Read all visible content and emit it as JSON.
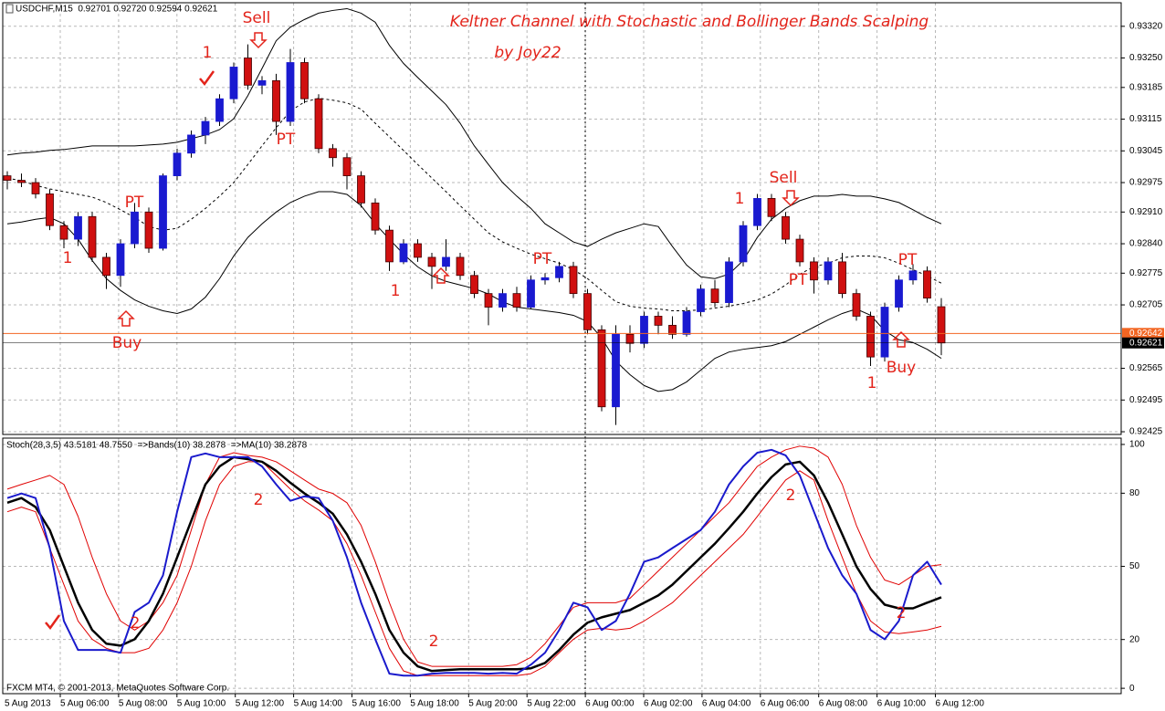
{
  "chart_data": [
    {
      "type": "candlestick",
      "header": "USDCHF,M15  0.92701 0.92720 0.92594 0.92621",
      "title": "Keltner Channel with Stochastic and Bollinger Bands Scalping",
      "subtitle": "by Joy22",
      "up_color": "#1a1ad0",
      "down_color": "#d01010",
      "open": [
        0.9299,
        0.9298,
        0.92975,
        0.9295,
        0.9288,
        0.9285,
        0.929,
        0.9281,
        0.9277,
        0.9284,
        0.9291,
        0.9283,
        0.9299,
        0.9304,
        0.9308,
        0.9311,
        0.9316,
        0.9325,
        0.9319,
        0.932,
        0.9311,
        0.9324,
        0.9316,
        0.9305,
        0.9303,
        0.9299,
        0.9293,
        0.9287,
        0.928,
        0.9284,
        0.9281,
        0.9279,
        0.9281,
        0.9277,
        0.9273,
        0.927,
        0.9273,
        0.927,
        0.9276,
        0.92765,
        0.9279,
        0.9273,
        0.9265,
        0.9248,
        0.9264,
        0.9262,
        0.9268,
        0.9266,
        0.9264,
        0.9269,
        0.9274,
        0.9271,
        0.928,
        0.9288,
        0.9294,
        0.929,
        0.9285,
        0.928,
        0.9276,
        0.928,
        0.9273,
        0.9268,
        0.9259,
        0.927,
        0.9276,
        0.9278,
        0.92701
      ],
      "high": [
        0.93,
        0.92995,
        0.92985,
        0.9296,
        0.9289,
        0.9291,
        0.9291,
        0.9282,
        0.9285,
        0.9293,
        0.9292,
        0.92995,
        0.9305,
        0.9309,
        0.9312,
        0.9317,
        0.9324,
        0.9328,
        0.9321,
        0.93215,
        0.9327,
        0.9325,
        0.9317,
        0.9306,
        0.9304,
        0.93,
        0.9294,
        0.9288,
        0.9285,
        0.9285,
        0.9282,
        0.9285,
        0.9282,
        0.9278,
        0.9274,
        0.9274,
        0.92745,
        0.9277,
        0.92775,
        0.928,
        0.928,
        0.9274,
        0.9266,
        0.9266,
        0.9266,
        0.9269,
        0.9269,
        0.9268,
        0.927,
        0.9275,
        0.9276,
        0.9281,
        0.9289,
        0.9295,
        0.9295,
        0.9291,
        0.9286,
        0.9281,
        0.9281,
        0.9282,
        0.9274,
        0.9269,
        0.9271,
        0.9277,
        0.92795,
        0.9279,
        0.9272
      ],
      "low": [
        0.9296,
        0.92965,
        0.9294,
        0.9287,
        0.9283,
        0.92835,
        0.928,
        0.9274,
        0.92745,
        0.9283,
        0.9282,
        0.92825,
        0.9298,
        0.9303,
        0.9306,
        0.931,
        0.9315,
        0.9318,
        0.9317,
        0.9308,
        0.931,
        0.9315,
        0.9304,
        0.9301,
        0.9296,
        0.9292,
        0.9286,
        0.9278,
        0.92795,
        0.928,
        0.9274,
        0.9278,
        0.9276,
        0.9272,
        0.9266,
        0.9269,
        0.9269,
        0.92695,
        0.9275,
        0.92755,
        0.9272,
        0.9264,
        0.9247,
        0.9244,
        0.926,
        0.9261,
        0.9264,
        0.9263,
        0.92635,
        0.9268,
        0.927,
        0.927,
        0.9279,
        0.9287,
        0.9289,
        0.9284,
        0.9279,
        0.9273,
        0.9275,
        0.9272,
        0.9267,
        0.9257,
        0.9258,
        0.9269,
        0.9275,
        0.9271,
        0.92594
      ],
      "close": [
        0.9298,
        0.92975,
        0.9295,
        0.9288,
        0.9285,
        0.929,
        0.9281,
        0.9277,
        0.9284,
        0.9291,
        0.9283,
        0.9299,
        0.9304,
        0.9308,
        0.9311,
        0.9316,
        0.9323,
        0.9319,
        0.932,
        0.9311,
        0.9324,
        0.9316,
        0.9305,
        0.9303,
        0.9299,
        0.9293,
        0.9287,
        0.928,
        0.9284,
        0.9281,
        0.9279,
        0.9281,
        0.9277,
        0.9273,
        0.927,
        0.9273,
        0.927,
        0.9276,
        0.92765,
        0.9279,
        0.9273,
        0.9265,
        0.9248,
        0.9264,
        0.9262,
        0.9268,
        0.9266,
        0.9264,
        0.9269,
        0.9274,
        0.9271,
        0.928,
        0.9288,
        0.9294,
        0.929,
        0.9285,
        0.928,
        0.9276,
        0.928,
        0.9273,
        0.9268,
        0.9259,
        0.927,
        0.9276,
        0.9278,
        0.9272,
        0.92621
      ],
      "bands": [
        {
          "color": "#000000",
          "values": [
            0.93036,
            0.9304,
            0.93042,
            0.93046,
            0.93048,
            0.93052,
            0.93056,
            0.93056,
            0.93056,
            0.93056,
            0.93058,
            0.9306,
            0.93064,
            0.93072,
            0.9308,
            0.93092,
            0.93116,
            0.93167,
            0.93227,
            0.93288,
            0.93318,
            0.93335,
            0.93349,
            0.93355,
            0.93359,
            0.93349,
            0.93329,
            0.93278,
            0.93238,
            0.93207,
            0.93177,
            0.93147,
            0.93106,
            0.93056,
            0.93015,
            0.92975,
            0.92945,
            0.92918,
            0.92884,
            0.92864,
            0.92844,
            0.92834,
            0.9285,
            0.92864,
            0.92874,
            0.92884,
            0.92878,
            0.92834,
            0.92793,
            0.92767,
            0.92763,
            0.92773,
            0.92803,
            0.92854,
            0.92894,
            0.92918,
            0.92935,
            0.92945,
            0.92945,
            0.92949,
            0.92945,
            0.92945,
            0.92939,
            0.92931,
            0.92915,
            0.92898,
            0.92884
          ]
        },
        {
          "color": "#000000",
          "dashed": true,
          "values": [
            0.92985,
            0.92979,
            0.92969,
            0.92961,
            0.92955,
            0.92949,
            0.92943,
            0.92931,
            0.92915,
            0.92898,
            0.92878,
            0.9287,
            0.92874,
            0.92894,
            0.92918,
            0.92945,
            0.92975,
            0.93015,
            0.93056,
            0.93096,
            0.93133,
            0.93153,
            0.93161,
            0.93157,
            0.93151,
            0.93137,
            0.93106,
            0.93076,
            0.93046,
            0.93015,
            0.92985,
            0.92955,
            0.92924,
            0.92894,
            0.92864,
            0.92844,
            0.9283,
            0.92817,
            0.92807,
            0.92797,
            0.92783,
            0.92763,
            0.92737,
            0.92712,
            0.92702,
            0.92698,
            0.92696,
            0.92692,
            0.92692,
            0.92694,
            0.92698,
            0.92702,
            0.92708,
            0.92716,
            0.92729,
            0.92749,
            0.92773,
            0.92789,
            0.92797,
            0.92809,
            0.92813,
            0.92813,
            0.92809,
            0.92797,
            0.92783,
            0.92769,
            0.92753
          ]
        },
        {
          "color": "#000000",
          "values": [
            0.92884,
            0.92888,
            0.92894,
            0.92898,
            0.92884,
            0.9285,
            0.92803,
            0.92763,
            0.92737,
            0.92716,
            0.92702,
            0.92692,
            0.92686,
            0.92696,
            0.92722,
            0.92763,
            0.92813,
            0.92854,
            0.92884,
            0.9291,
            0.92931,
            0.92945,
            0.92955,
            0.92955,
            0.92949,
            0.92924,
            0.92884,
            0.9285,
            0.92817,
            0.92789,
            0.92769,
            0.92757,
            0.92749,
            0.92741,
            0.92729,
            0.92712,
            0.927,
            0.92696,
            0.92692,
            0.92688,
            0.92682,
            0.92668,
            0.92632,
            0.92581,
            0.92551,
            0.92527,
            0.92514,
            0.92518,
            0.92535,
            0.92561,
            0.92587,
            0.92601,
            0.92607,
            0.92611,
            0.92615,
            0.92624,
            0.9264,
            0.92656,
            0.92672,
            0.92686,
            0.92696,
            0.92682,
            0.92648,
            0.92628,
            0.92622,
            0.92607,
            0.92587
          ]
        }
      ],
      "price_lines": [
        {
          "value": 0.92642,
          "color": "#f26522"
        },
        {
          "value": 0.92621,
          "color": "#000000"
        }
      ],
      "ylim": [
        0.92419,
        0.93372
      ],
      "yticks": [
        {
          "value": 0.9332,
          "label": "0.93320"
        },
        {
          "value": 0.9325,
          "label": "0.93250"
        },
        0.93185,
        0.93115,
        0.93045,
        0.92975,
        {
          "value": 0.9291,
          "label": "0.92910"
        },
        {
          "value": 0.9284,
          "label": "0.92840"
        },
        0.92775,
        0.92705,
        0.92565,
        0.92495,
        0.92425
      ],
      "grid": true,
      "annotations": [
        "Sell",
        "1",
        "1",
        "PT",
        "Buy",
        "PT",
        "1",
        "PT",
        "Sell",
        "1",
        "PT",
        "PT",
        "Buy",
        "1"
      ]
    },
    {
      "type": "line",
      "header": "Stoch(28,3,5) 43.5181 48.7550  =>Bands(10) 38.2878  =>MA(10) 38.2878",
      "series": [
        {
          "color": "#e00000",
          "width": 1,
          "values": [
            81.7,
            83.6,
            85.4,
            87.3,
            83.6,
            70.5,
            53.7,
            38.8,
            27.6,
            23.9,
            27.6,
            35.1,
            46.3,
            64.9,
            83.6,
            94.8,
            96.6,
            95.5,
            94.8,
            92.9,
            89.2,
            85.4,
            81.7,
            79.9,
            76.1,
            66.8,
            51.9,
            35.1,
            20.1,
            10.8,
            9.0,
            9.0,
            9.0,
            9.0,
            9.0,
            9.0,
            9.7,
            12.7,
            18.3,
            25.7,
            33.2,
            35.1,
            35.1,
            35.1,
            36.9,
            42.5,
            48.1,
            53.7,
            59.3,
            64.9,
            70.5,
            76.1,
            83.6,
            91.0,
            94.8,
            97.8,
            99.3,
            98.5,
            94.8,
            83.6,
            66.8,
            53.7,
            44.4,
            42.5,
            46.3,
            50.0,
            50.7
          ]
        },
        {
          "color": "#e00000",
          "width": 1,
          "values": [
            72.4,
            74.3,
            72.4,
            57.5,
            42.5,
            27.6,
            20.1,
            16.4,
            14.6,
            14.6,
            16.4,
            23.9,
            35.1,
            50.0,
            68.7,
            83.6,
            91.0,
            92.9,
            92.9,
            87.3,
            81.7,
            76.9,
            73.1,
            68.7,
            59.3,
            46.3,
            31.3,
            16.4,
            7.1,
            5.2,
            5.2,
            5.2,
            5.2,
            5.2,
            5.2,
            5.2,
            5.2,
            6.0,
            9.0,
            14.6,
            20.1,
            23.9,
            24.6,
            23.9,
            24.6,
            27.6,
            31.3,
            35.1,
            40.7,
            46.3,
            51.9,
            57.5,
            63.1,
            70.5,
            78.0,
            85.4,
            89.2,
            85.4,
            68.7,
            53.7,
            38.8,
            27.6,
            23.1,
            22.4,
            23.1,
            23.9,
            25.4
          ]
        },
        {
          "color": "#000000",
          "width": 2.5,
          "values": [
            76.1,
            78.0,
            74.3,
            64.9,
            50.0,
            35.1,
            23.9,
            18.3,
            17.5,
            20.1,
            27.6,
            38.8,
            53.7,
            68.7,
            83.6,
            91.0,
            94.8,
            94.0,
            92.9,
            89.2,
            84.3,
            79.9,
            76.1,
            71.6,
            63.1,
            51.9,
            38.8,
            23.9,
            14.6,
            9.0,
            7.1,
            7.5,
            7.8,
            7.8,
            7.8,
            7.8,
            7.8,
            8.2,
            10.4,
            15.7,
            22.0,
            26.9,
            29.1,
            30.6,
            32.1,
            35.1,
            38.1,
            42.5,
            48.1,
            53.7,
            59.3,
            65.7,
            72.4,
            79.9,
            86.6,
            91.8,
            92.9,
            87.3,
            76.1,
            63.1,
            50.0,
            40.7,
            34.3,
            32.8,
            32.8,
            35.1,
            37.3
          ]
        },
        {
          "color": "#1a1acc",
          "width": 2,
          "values": [
            78.0,
            79.9,
            78.0,
            57.5,
            27.6,
            15.7,
            15.7,
            15.7,
            14.6,
            31.3,
            35.1,
            46.3,
            72.4,
            94.8,
            96.3,
            94.8,
            94.8,
            94.8,
            91.0,
            83.6,
            76.9,
            78.7,
            78.0,
            68.7,
            53.7,
            35.1,
            20.1,
            6.0,
            5.2,
            5.2,
            6.0,
            6.3,
            6.3,
            6.3,
            6.0,
            6.3,
            6.0,
            9.7,
            14.6,
            23.9,
            35.1,
            33.2,
            23.9,
            27.6,
            38.8,
            51.9,
            53.7,
            57.5,
            61.2,
            64.9,
            72.4,
            83.6,
            91.0,
            96.6,
            97.8,
            95.5,
            87.3,
            72.4,
            57.5,
            46.3,
            38.8,
            23.9,
            20.1,
            27.6,
            46.3,
            51.9,
            42.5
          ]
        }
      ],
      "ylim": [
        -2.2,
        102.6
      ],
      "yticks": [
        100,
        80,
        50,
        20,
        0
      ],
      "grid": true,
      "annotations": [
        "2",
        "2",
        "2",
        "2",
        "2"
      ],
      "footer": "FXCM MT4, © 2001-2013, MetaQuotes Software Corp.",
      "x_labels": [
        "5 Aug 2013",
        "5 Aug 06:00",
        "5 Aug 08:00",
        "5 Aug 10:00",
        "5 Aug 12:00",
        "5 Aug 14:00",
        "5 Aug 16:00",
        "5 Aug 18:00",
        "5 Aug 20:00",
        "5 Aug 22:00",
        "6 Aug 00:00",
        "6 Aug 02:00",
        "6 Aug 04:00",
        "6 Aug 06:00",
        "6 Aug 08:00",
        "6 Aug 10:00",
        "6 Aug 12:00"
      ]
    }
  ]
}
